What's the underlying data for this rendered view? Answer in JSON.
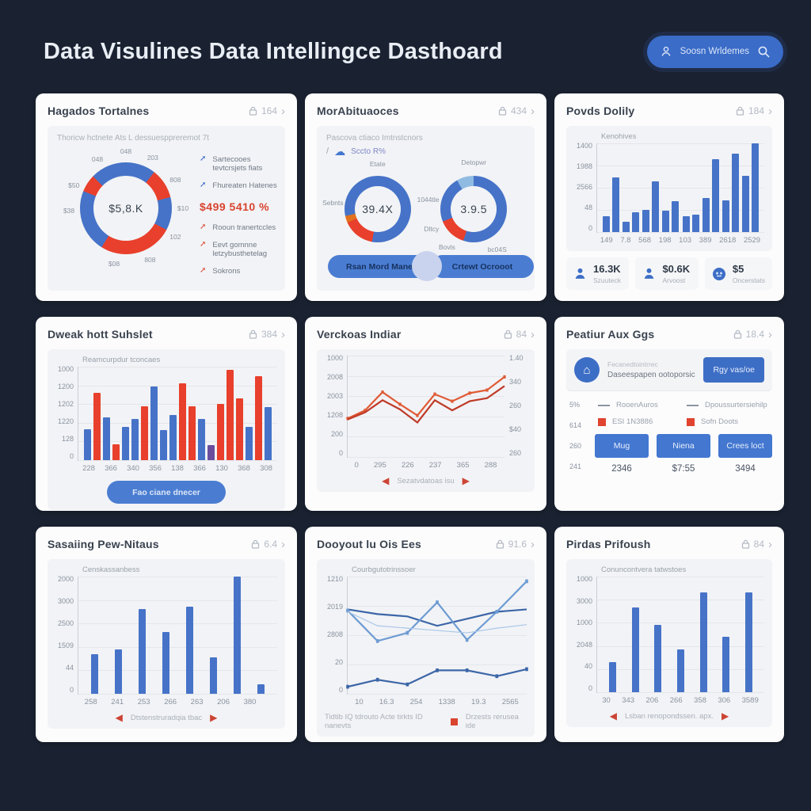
{
  "colors": {
    "accent_blue": "#4673c8",
    "accent_red": "#e8402c",
    "button_blue": "#4377d0",
    "navy_bg": "#1a2231"
  },
  "header": {
    "title": "Data Visulines Data Intellingce Dasthoard",
    "search": {
      "user_label": "Soosn Wrldemes"
    }
  },
  "cards": {
    "hagados": {
      "title": "Hagados Tortalnes",
      "meta": "164",
      "subtitle": "Thoricw hctnete Ats L dessuesppreremot 7t",
      "legend_blue": [
        "Sartecooes tevtcrsjets fiats",
        "Fhureaten Hatenes"
      ],
      "highlight": "$499 5410 %",
      "legend_red": [
        "Rooun tranertccles",
        "Eevt gomnne letzybusthetelag",
        "Sokrons"
      ],
      "chart_data": {
        "type": "donut",
        "center": "$5,8.K",
        "size": 116,
        "thick": 17,
        "labelR": 14,
        "segments": [
          {
            "color": "#4673c8",
            "from": 0,
            "to": 38
          },
          {
            "color": "#e8402c",
            "from": 38,
            "to": 76
          },
          {
            "color": "#4673c8",
            "from": 76,
            "to": 118
          },
          {
            "color": "#e8402c",
            "from": 118,
            "to": 212
          },
          {
            "color": "#4673c8",
            "from": 212,
            "to": 292
          },
          {
            "color": "#e8402c",
            "from": 292,
            "to": 314
          },
          {
            "color": "#4673c8",
            "from": 314,
            "to": 360
          }
        ],
        "labels": [
          {
            "angle": -30,
            "text": "048"
          },
          {
            "angle": 0,
            "text": "048"
          },
          {
            "angle": 28,
            "text": "203"
          },
          {
            "angle": 60,
            "text": "808"
          },
          {
            "angle": 90,
            "text": "$10"
          },
          {
            "angle": 120,
            "text": "102"
          },
          {
            "angle": 155,
            "text": "808"
          },
          {
            "angle": 192,
            "text": "$08"
          },
          {
            "angle": 268,
            "text": "$38"
          },
          {
            "angle": 294,
            "text": "$50"
          }
        ]
      }
    },
    "morab": {
      "title": "MorAbituaoces",
      "meta": "434",
      "subtitle": "Pascova ctiaco Imtnstcnors",
      "scoto_label": "Sccto R%",
      "donut_a": {
        "type": "donut",
        "center": "39.4X",
        "size": 84,
        "thick": 13,
        "labelR": 15,
        "segments": [
          {
            "color": "#4673c8",
            "from": 0,
            "to": 190
          },
          {
            "color": "#e8402c",
            "from": 190,
            "to": 246
          },
          {
            "color": "#e2711d",
            "from": 246,
            "to": 258
          },
          {
            "color": "#4673c8",
            "from": 258,
            "to": 360
          }
        ],
        "labels": [
          {
            "angle": 0,
            "text": "Etate"
          },
          {
            "angle": 278,
            "text": "Sebnts"
          }
        ]
      },
      "donut_b": {
        "type": "donut",
        "center": "3.9.5",
        "size": 84,
        "thick": 13,
        "labelR": 17,
        "segments": [
          {
            "color": "#4673c8",
            "from": 0,
            "to": 198
          },
          {
            "color": "#e8402c",
            "from": 198,
            "to": 248
          },
          {
            "color": "#4673c8",
            "from": 248,
            "to": 330
          },
          {
            "color": "#8fbbe3",
            "from": 330,
            "to": 360
          }
        ],
        "labels": [
          {
            "angle": 0,
            "text": "Detopwr"
          },
          {
            "angle": 150,
            "text": "bc04S"
          },
          {
            "angle": 215,
            "text": "Bovls"
          },
          {
            "angle": 245,
            "text": "Dltcy"
          },
          {
            "angle": 282,
            "text": "1044tle"
          }
        ]
      },
      "button_primary": "Rsan Mord Mane",
      "button_secondary": "Crtewt Ocrooot"
    },
    "povds": {
      "title": "Povds Dolily",
      "meta": "184",
      "chart_data": {
        "type": "bars",
        "label": "Kenohives",
        "color": "#4673c8",
        "y": [
          "1400",
          "1988",
          "2566",
          "48",
          "0"
        ],
        "x": [
          "149",
          "7.8",
          "568",
          "198",
          "103",
          "389",
          "2618",
          "2529"
        ],
        "groups": [
          [
            18,
            62
          ],
          [
            12,
            22
          ],
          [
            25,
            57
          ],
          [
            24,
            35
          ],
          [
            18,
            20
          ],
          [
            38,
            82
          ],
          [
            36,
            88
          ],
          [
            63,
            100
          ]
        ]
      },
      "stats": [
        {
          "value": "16.3K",
          "label": "Szuuteck"
        },
        {
          "value": "$0.6K",
          "label": "Arvoost"
        },
        {
          "value": "$5",
          "label": "Oncerstats"
        }
      ]
    },
    "dweak": {
      "title": "Dweak hott Suhslet",
      "meta": "384",
      "button": "Fao ciane dnecer",
      "chart_data": {
        "type": "bars",
        "label": "Reamcurpdur tconcaes",
        "color": "#4673c8",
        "y": [
          "1000",
          "1200",
          "1202",
          "1220",
          "128",
          "0"
        ],
        "x": [
          "228",
          "366",
          "340",
          "356",
          "138",
          "366",
          "130",
          "368",
          "308"
        ],
        "bars": [
          {
            "v": 33,
            "c": "#4673c8"
          },
          {
            "v": 72,
            "c": "#e8402c"
          },
          {
            "v": 46,
            "c": "#4673c8"
          },
          {
            "v": 17,
            "c": "#e8402c"
          },
          {
            "v": 36,
            "c": "#4673c8"
          },
          {
            "v": 44,
            "c": "#4673c8"
          },
          {
            "v": 58,
            "c": "#e8402c"
          },
          {
            "v": 79,
            "c": "#4673c8"
          },
          {
            "v": 32,
            "c": "#4673c8"
          },
          {
            "v": 48,
            "c": "#4673c8"
          },
          {
            "v": 82,
            "c": "#e8402c"
          },
          {
            "v": 58,
            "c": "#e8402c"
          },
          {
            "v": 44,
            "c": "#4673c8"
          },
          {
            "v": 16,
            "c": "#6a4e9e"
          },
          {
            "v": 60,
            "c": "#e8402c"
          },
          {
            "v": 97,
            "c": "#e8402c"
          },
          {
            "v": 66,
            "c": "#e8402c"
          },
          {
            "v": 36,
            "c": "#4673c8"
          },
          {
            "v": 90,
            "c": "#e8402c"
          },
          {
            "v": 57,
            "c": "#4673c8"
          }
        ]
      }
    },
    "verckoas": {
      "title": "Verckoas Indiar",
      "meta": "84",
      "footer": "Sezatvdatoas isu",
      "chart_data": {
        "type": "lines",
        "y": [
          "1000",
          "2008",
          "2003",
          "1208",
          "200",
          "0"
        ],
        "y_right": [
          "1.40",
          "340",
          "260",
          "$40",
          "260"
        ],
        "x": [
          "0",
          "295",
          "226",
          "237",
          "365",
          "288"
        ],
        "series": [
          {
            "color": "#e05a35",
            "w": 2.2,
            "marker": true,
            "values": [
              38,
              46,
              64,
              52,
              41,
              62,
              55,
              63,
              66,
              79
            ]
          },
          {
            "color": "#bf3a27",
            "w": 2.2,
            "marker": false,
            "values": [
              37,
              44,
              56,
              47,
              34,
              56,
              46,
              55,
              58,
              70
            ]
          }
        ]
      }
    },
    "peatiur": {
      "title": "Peatiur Aux Ggs",
      "meta": "18.4",
      "strip": {
        "small": "Fecanedtointrrec",
        "text": "Daseespapen ootoporsicenapet u crioson",
        "button": "Rgy vas/oe"
      },
      "axis": [
        "5%",
        "614",
        "260",
        "241"
      ],
      "legend": [
        {
          "style": "dash",
          "label": "RooenAuros"
        },
        {
          "style": "dash",
          "label": "Dpoussurtersiehilp"
        },
        {
          "style": "square",
          "label": "ESI 1N3886"
        },
        {
          "style": "square",
          "label": "Sofn Doots"
        }
      ],
      "actions": [
        {
          "label": "Mug",
          "value": "2346"
        },
        {
          "label": "Niena",
          "value": "$7:55"
        },
        {
          "label": "Crees loct",
          "value": "3494"
        }
      ]
    },
    "sasaiing": {
      "title": "Sasaiing Pew-Nitaus",
      "meta": "6.4",
      "footer": "Dtstenstruradqia tbac",
      "chart_data": {
        "type": "bars",
        "label": "Censkassanbess",
        "color": "#4673c8",
        "y": [
          "2000",
          "3000",
          "2500",
          "1509",
          "44",
          "0"
        ],
        "x": [
          "258",
          "241",
          "253",
          "266",
          "263",
          "206",
          "380",
          ""
        ],
        "bars": [
          {
            "v": 34
          },
          {
            "v": 38
          },
          {
            "v": 72
          },
          {
            "v": 53
          },
          {
            "v": 74
          },
          {
            "v": 31
          },
          {
            "v": 100
          },
          {
            "v": 8
          }
        ]
      }
    },
    "dooyout": {
      "title": "Dooyout lu Ois Ees",
      "meta": "91.6",
      "footer_text": "Tidtib IQ tdrouto Acte tirkts ID nanevts",
      "footer_legend": "Drzests rerusea ide",
      "chart_data": {
        "type": "lines",
        "label": "Courbgutotrinssoer",
        "y": [
          "1210",
          "2019",
          "2808",
          "20",
          "0"
        ],
        "x": [
          "10",
          "16.3",
          "254",
          "1338",
          "19.3",
          "2565"
        ],
        "series": [
          {
            "color": "#3c66a8",
            "w": 2.2,
            "marker": false,
            "values": [
              72,
              68,
              66,
              58,
              64,
              70,
              72
            ]
          },
          {
            "color": "#6d9bd3",
            "w": 2.2,
            "marker": true,
            "values": [
              71,
              45,
              52,
              78,
              46,
              70,
              96
            ]
          },
          {
            "color": "#aac7e8",
            "w": 1.2,
            "marker": false,
            "values": [
              70,
              58,
              56,
              54,
              52,
              56,
              59
            ]
          },
          {
            "color": "#3c66a8",
            "w": 2.2,
            "marker": true,
            "values": [
              6,
              12,
              8,
              20,
              20,
              15,
              21
            ]
          }
        ]
      }
    },
    "pirdas": {
      "title": "Pirdas Prifoush",
      "meta": "84",
      "footer": "Lsban renopondssen. apx.",
      "chart_data": {
        "type": "bars",
        "label": "Conuncontvera tatwstoes",
        "color": "#4673c8",
        "y": [
          "1000",
          "3000",
          "1000",
          "2048",
          "40",
          "0"
        ],
        "x": [
          "30",
          "343",
          "206",
          "266",
          "358",
          "306",
          "3589"
        ],
        "bars": [
          {
            "v": 26
          },
          {
            "v": 73
          },
          {
            "v": 58
          },
          {
            "v": 37
          },
          {
            "v": 86
          },
          {
            "v": 48
          },
          {
            "v": 86
          }
        ]
      }
    }
  }
}
